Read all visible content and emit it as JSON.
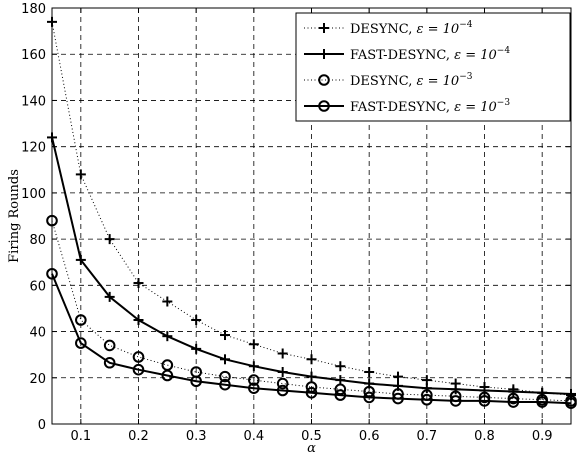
{
  "chart_data": {
    "type": "line",
    "title": "",
    "xlabel": "α",
    "ylabel": "Firing Rounds",
    "xlim": [
      0.05,
      0.95
    ],
    "ylim": [
      0,
      180
    ],
    "xticks": [
      0.1,
      0.2,
      0.3,
      0.4,
      0.5,
      0.6,
      0.7,
      0.8,
      0.9
    ],
    "xtick_labels": [
      "0.1",
      "0.2",
      "0.3",
      "0.4",
      "0.5",
      "0.6",
      "0.7",
      "0.8",
      "0.9"
    ],
    "yticks": [
      0,
      20,
      40,
      60,
      80,
      100,
      120,
      140,
      160,
      180
    ],
    "ytick_labels": [
      "0",
      "20",
      "40",
      "60",
      "80",
      "100",
      "120",
      "140",
      "160",
      "180"
    ],
    "grid": true,
    "legend_position": "top-right",
    "x": [
      0.05,
      0.1,
      0.15,
      0.2,
      0.25,
      0.3,
      0.35,
      0.4,
      0.45,
      0.5,
      0.55,
      0.6,
      0.65,
      0.7,
      0.75,
      0.8,
      0.85,
      0.9,
      0.95
    ],
    "series": [
      {
        "name_prefix": "DESYNC, ",
        "name_eps": "ε = 10",
        "name_exp": "−4",
        "line_style": "dotted",
        "marker": "plus",
        "values": [
          174,
          108,
          80,
          61,
          53,
          45,
          38.5,
          34.5,
          30.5,
          28,
          25,
          22.5,
          20.5,
          19,
          17.5,
          16,
          15,
          13.5,
          12.5
        ]
      },
      {
        "name_prefix": "FAST-DESYNC, ",
        "name_eps": "ε = 10",
        "name_exp": "−4",
        "line_style": "solid",
        "marker": "plus",
        "values": [
          124,
          71,
          55,
          45,
          38,
          32.5,
          28,
          25,
          22.5,
          20.5,
          19,
          17.5,
          16.5,
          15.5,
          15,
          14.5,
          14,
          13.5,
          13
        ]
      },
      {
        "name_prefix": "DESYNC, ",
        "name_eps": "ε = 10",
        "name_exp": "−3",
        "line_style": "dotted",
        "marker": "circle",
        "values": [
          88,
          45,
          34,
          29,
          25.5,
          22.5,
          20.5,
          19,
          17.5,
          16,
          15,
          14,
          13,
          12.5,
          12,
          11.5,
          11,
          10.5,
          10
        ]
      },
      {
        "name_prefix": "FAST-DESYNC, ",
        "name_eps": "ε = 10",
        "name_exp": "−3",
        "line_style": "solid",
        "marker": "circle",
        "values": [
          65,
          35,
          26.5,
          23.5,
          21,
          18.5,
          17,
          15.5,
          14.5,
          13.5,
          12.5,
          11.5,
          11,
          10.5,
          10,
          10,
          9.5,
          9.5,
          9
        ]
      }
    ]
  }
}
